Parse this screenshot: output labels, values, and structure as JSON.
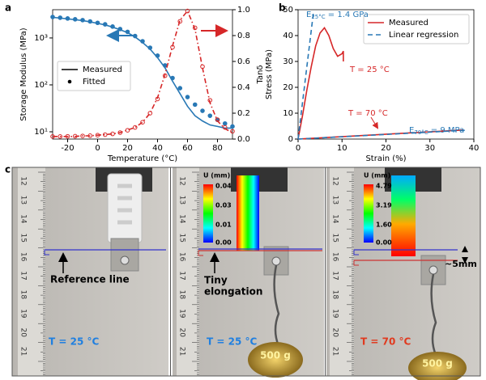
{
  "chart_data": [
    {
      "type": "line",
      "panel": "a",
      "xlabel": "Temperature (°C)",
      "ylabel": "Storage Modulus (MPa)",
      "y2label": "Tanδ",
      "xlim": [
        -30,
        90
      ],
      "xticks": [
        -20,
        0,
        20,
        40,
        60,
        80
      ],
      "ylim": [
        7,
        4000
      ],
      "ylog": true,
      "yticks": [
        {
          "value": 10,
          "label": "10¹"
        },
        {
          "value": 100,
          "label": "10²"
        },
        {
          "value": 1000,
          "label": "10³"
        }
      ],
      "y2lim": [
        0,
        1.0
      ],
      "y2ticks": [
        {
          "value": 0,
          "label": "0.0"
        },
        0.2,
        0.4,
        0.6,
        0.8,
        {
          "value": 1,
          "label": "1.0"
        }
      ],
      "legend": "center left",
      "legend_color": "#000000",
      "x": [
        -30,
        -25,
        -20,
        -15,
        -10,
        -5,
        0,
        5,
        10,
        15,
        20,
        25,
        30,
        35,
        40,
        45,
        50,
        55,
        60,
        65,
        70,
        75,
        80,
        85,
        90
      ],
      "series": [
        {
          "name": "Measured",
          "color": "#2878b5",
          "style": "solid",
          "marker": "none",
          "values": [
            2750,
            2650,
            2550,
            2450,
            2350,
            2200,
            2050,
            1900,
            1700,
            1500,
            1300,
            1050,
            800,
            580,
            380,
            230,
            120,
            65,
            35,
            22,
            17,
            14,
            13,
            12,
            12
          ]
        },
        {
          "name": "Fitted",
          "color": "#2878b5",
          "style": "none",
          "marker": "circle",
          "values": [
            2800,
            2700,
            2600,
            2500,
            2400,
            2250,
            2100,
            1950,
            1750,
            1550,
            1350,
            1100,
            850,
            620,
            420,
            260,
            140,
            85,
            55,
            38,
            28,
            22,
            18,
            15,
            13
          ]
        },
        {
          "axis": "y2",
          "color": "#d62728",
          "style": "dashdot",
          "marker": "none",
          "values": [
            0.02,
            0.02,
            0.02,
            0.02,
            0.025,
            0.025,
            0.03,
            0.035,
            0.04,
            0.05,
            0.07,
            0.09,
            0.13,
            0.2,
            0.32,
            0.5,
            0.72,
            0.92,
            0.99,
            0.85,
            0.55,
            0.28,
            0.14,
            0.08,
            0.05
          ]
        },
        {
          "axis": "y2",
          "color": "#d62728",
          "style": "none",
          "marker": "open-circle",
          "values": [
            0.02,
            0.02,
            0.021,
            0.022,
            0.024,
            0.026,
            0.03,
            0.034,
            0.04,
            0.05,
            0.068,
            0.09,
            0.13,
            0.2,
            0.31,
            0.49,
            0.71,
            0.91,
            0.99,
            0.86,
            0.56,
            0.3,
            0.15,
            0.09,
            0.06
          ]
        }
      ]
    },
    {
      "type": "line",
      "panel": "b",
      "xlabel": "Strain (%)",
      "ylabel": "Stress (MPa)",
      "xlim": [
        0,
        40
      ],
      "xticks": [
        0,
        10,
        20,
        30,
        40
      ],
      "ylim": [
        0,
        50
      ],
      "yticks": [
        0,
        10,
        20,
        30,
        40,
        50
      ],
      "legend": "upper right",
      "series": [
        {
          "name": "Measured",
          "color": "#d62728",
          "style": "solid",
          "marker": "none",
          "x": [
            0,
            1,
            2,
            3,
            4,
            5,
            6,
            7,
            8,
            9,
            10,
            10.3,
            10.3
          ],
          "values": [
            0,
            9,
            19,
            28,
            36,
            41,
            43,
            40,
            35,
            32,
            33,
            34,
            30
          ]
        },
        {
          "name": "Linear regression",
          "color": "#2878b5",
          "style": "dashed",
          "marker": "none",
          "x": [
            0,
            3.5
          ],
          "values": [
            0,
            49
          ]
        },
        {
          "color": "#d62728",
          "style": "solid",
          "marker": "none",
          "x": [
            0,
            37.5
          ],
          "values": [
            0,
            3.5
          ]
        },
        {
          "color": "#2878b5",
          "style": "dashed",
          "marker": "none",
          "x": [
            0,
            38
          ],
          "values": [
            0,
            3.4
          ]
        }
      ],
      "annotations": [
        {
          "text": "E",
          "sub": "25°C",
          "rest": " = 1.4 GPa",
          "color": "#2878b5"
        },
        {
          "text": "T = 25 °C",
          "color": "#d62728"
        },
        {
          "text": "T = 70 °C",
          "color": "#d62728"
        },
        {
          "text": "E",
          "sub": "70°C",
          "rest": " = 9 MPa",
          "color": "#2878b5"
        }
      ]
    }
  ],
  "panel_c": {
    "label": "c",
    "ruler": [
      12,
      13,
      14,
      15,
      16,
      17,
      18,
      19,
      20,
      21
    ],
    "photos": [
      {
        "note": "Reference line",
        "temperature": "T = 25 °C"
      },
      {
        "note": [
          "Tiny",
          "elongation"
        ],
        "temperature": "T = 25 °C",
        "colorbar": {
          "title": "U (mm)",
          "ticks": [
            "0.04",
            "0.03",
            "0.01",
            "0.00"
          ]
        },
        "weight": "500 g"
      },
      {
        "temperature": "T = 70 °C",
        "colorbar": {
          "title": "U (mm)",
          "ticks": [
            "4.79",
            "3.19",
            "1.60",
            "0.00"
          ]
        },
        "weight": "500 g",
        "displacement": "~5mm"
      }
    ]
  }
}
